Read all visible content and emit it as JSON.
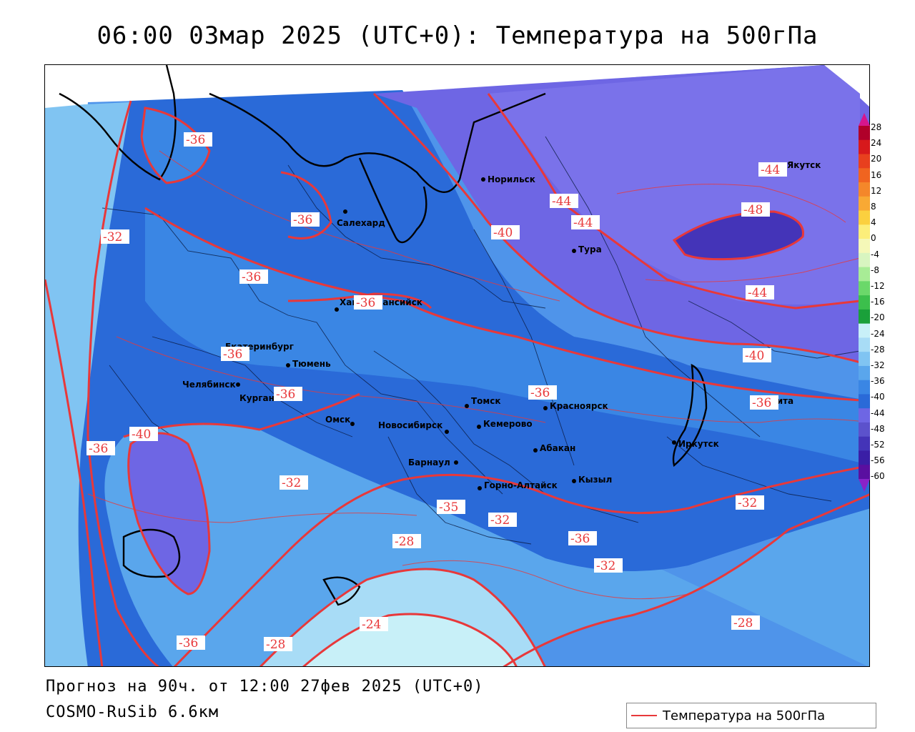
{
  "title": "06:00 03мар 2025 (UTC+0): Температура на 500гПа",
  "footer": {
    "forecast": "Прогноз на 90ч. от 12:00 27фев 2025 (UTC+0)",
    "model": "COSMO-RuSib 6.6км"
  },
  "legend": {
    "label": "Температура на 500гПа",
    "color": "#e8383a"
  },
  "colorbar": {
    "ticks": [
      "28",
      "24",
      "20",
      "16",
      "12",
      "8",
      "4",
      "0",
      "-4",
      "-8",
      "-12",
      "-16",
      "-20",
      "-24",
      "-28",
      "-32",
      "-36",
      "-40",
      "-44",
      "-48",
      "-52",
      "-56",
      "-60"
    ],
    "colors": [
      "#b0002a",
      "#d7191c",
      "#e8401e",
      "#f06420",
      "#f4872a",
      "#f8a934",
      "#fbd03f",
      "#fcee7a",
      "#f5f8b8",
      "#d8f5c0",
      "#a8ec96",
      "#6bd86a",
      "#3cbf4c",
      "#1aa03a",
      "#c8f0f8",
      "#a8dcf6",
      "#80c4f2",
      "#5aa6ec",
      "#3a86e4",
      "#2a6ad8",
      "#6e66e4",
      "#5c52cc",
      "#4434b8",
      "#3a1ea6",
      "#5a0fa0"
    ]
  },
  "cities": [
    {
      "name": "Якутск"
    },
    {
      "name": "Норильск"
    },
    {
      "name": "Салехард"
    },
    {
      "name": "Тура"
    },
    {
      "name": "Ханты-Мансийск"
    },
    {
      "name": "Екатеринбург"
    },
    {
      "name": "Тюмень"
    },
    {
      "name": "Челябинск"
    },
    {
      "name": "Курган"
    },
    {
      "name": "Омск"
    },
    {
      "name": "Томск"
    },
    {
      "name": "Красноярск"
    },
    {
      "name": "Новосибирск"
    },
    {
      "name": "Кемерово"
    },
    {
      "name": "Абакан"
    },
    {
      "name": "Барнаул"
    },
    {
      "name": "Горно-Алтайск"
    },
    {
      "name": "Кызыл"
    },
    {
      "name": "Иркутск"
    },
    {
      "name": "Чита"
    }
  ],
  "isolines": [
    {
      "value": "-36"
    },
    {
      "value": "-36"
    },
    {
      "value": "-32"
    },
    {
      "value": "-36"
    },
    {
      "value": "-36"
    },
    {
      "value": "-36"
    },
    {
      "value": "-36"
    },
    {
      "value": "-40"
    },
    {
      "value": "-36"
    },
    {
      "value": "-32"
    },
    {
      "value": "-36"
    },
    {
      "value": "-28"
    },
    {
      "value": "-24"
    },
    {
      "value": "-28"
    },
    {
      "value": "-32"
    },
    {
      "value": "-35"
    },
    {
      "value": "-40"
    },
    {
      "value": "-44"
    },
    {
      "value": "-44"
    },
    {
      "value": "-44"
    },
    {
      "value": "-48"
    },
    {
      "value": "-44"
    },
    {
      "value": "-40"
    },
    {
      "value": "-36"
    },
    {
      "value": "-36"
    },
    {
      "value": "-32"
    },
    {
      "value": "-36"
    },
    {
      "value": "-32"
    },
    {
      "value": "-28"
    },
    {
      "value": "-36"
    }
  ]
}
